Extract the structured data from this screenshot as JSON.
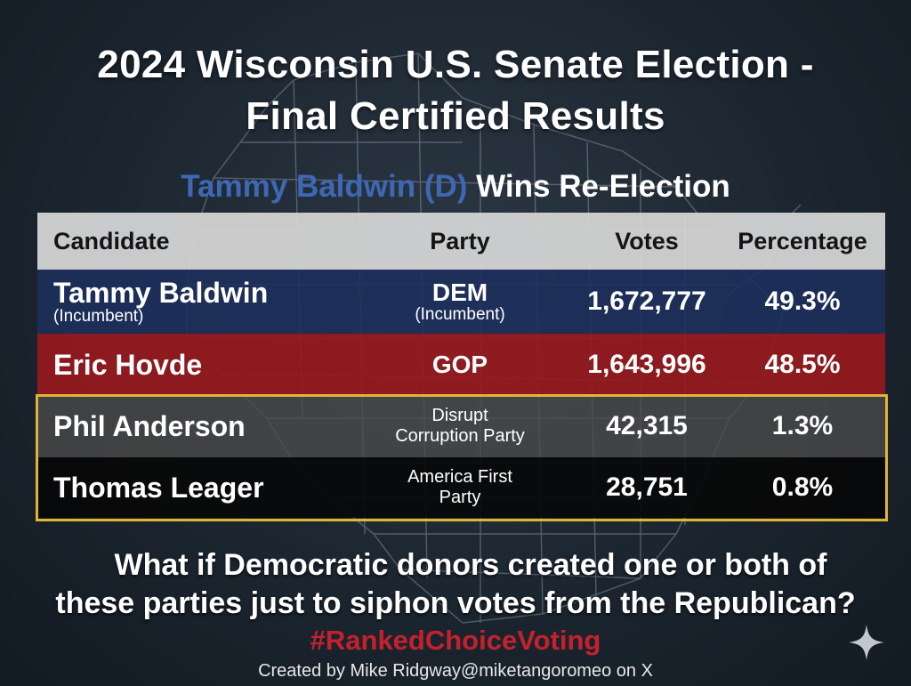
{
  "title": {
    "line1": "2024 Wisconsin U.S. Senate Election -",
    "line2": "Final Certified Results"
  },
  "subtitle": {
    "winner": "Tammy Baldwin (D)",
    "rest": "Wins Re-Election"
  },
  "table": {
    "headers": {
      "candidate": "Candidate",
      "party": "Party",
      "votes": "Votes",
      "percentage": "Percentage"
    },
    "rows": [
      {
        "name": "Tammy Baldwin",
        "name_note": "(Incumbent)",
        "party": "DEM",
        "party_note": "(Incumbent)",
        "votes": "1,672,777",
        "percentage": "49.3%",
        "color": "#1c2f5c"
      },
      {
        "name": "Eric Hovde",
        "party": "GOP",
        "votes": "1,643,996",
        "percentage": "48.5%",
        "color": "#96191d"
      },
      {
        "name": "Phil Anderson",
        "party_line1": "Disrupt",
        "party_line2": "Corruption Party",
        "votes": "42,315",
        "percentage": "1.3%",
        "color": "#4a4a4a"
      },
      {
        "name": "Thomas Leager",
        "party_line1": "America First",
        "party_line2": "Party",
        "votes": "28,751",
        "percentage": "0.8%",
        "color": "#080808"
      }
    ],
    "highlight_color": "#e0b437"
  },
  "question": {
    "line1": "What if Democratic donors created one or both of",
    "line2": "these parties just to siphon votes from the Republican?"
  },
  "hashtag": "#RankedChoiceVoting",
  "credit": "Created by Mike Ridgway@miketangoromeo on X",
  "icons": {
    "sparkle": "sparkle-icon",
    "map": "wisconsin-county-map"
  }
}
